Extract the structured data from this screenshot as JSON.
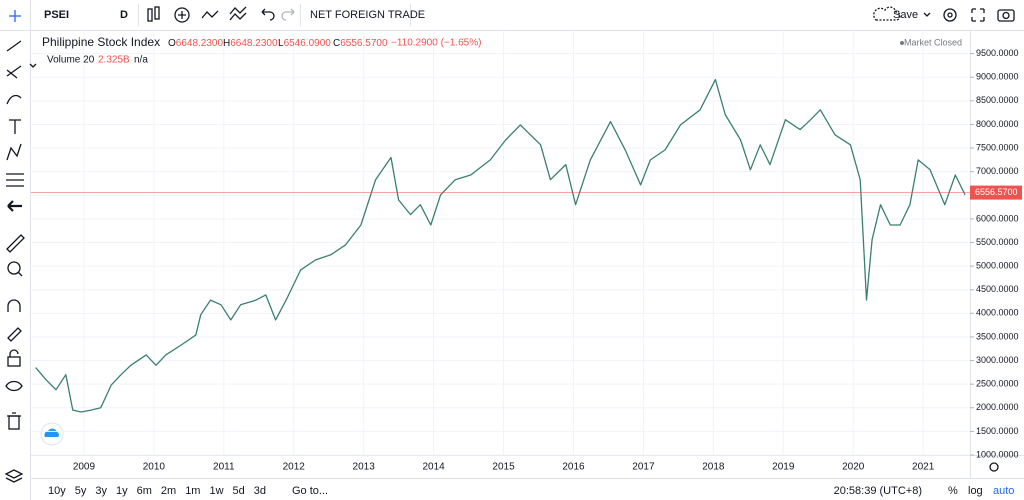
{
  "toolbar": {
    "symbol": "PSEI",
    "interval": "D",
    "indicator": "NET FOREIGN TRADE",
    "save": "Save"
  },
  "legend": {
    "ohlc": [
      {
        "key": "O",
        "value": "6648.2300"
      },
      {
        "key": "H",
        "value": "6648.2300"
      },
      {
        "key": "L",
        "value": "6546.0900"
      },
      {
        "key": "C",
        "value": "6556.5700"
      }
    ],
    "change": "−110.2900 (−1.65%)",
    "status": "Market Closed",
    "volume": {
      "name": "Volume 20",
      "value": "2.325B",
      "extra": "n/a"
    }
  },
  "chart_data": {
    "type": "line",
    "series": [
      {
        "name": "Philippine Stock Index",
        "color": "#3b7f73",
        "values": [
          2850,
          2590,
          2380,
          2700,
          1950,
          1910,
          1950,
          2000,
          2480,
          2700,
          2900,
          3120,
          2900,
          3120,
          3330,
          3540,
          3970,
          4280,
          4180,
          3860,
          4180,
          4280,
          4390,
          3860,
          4280,
          4920,
          5130,
          5240,
          5450,
          5870,
          6830,
          7300,
          6400,
          6090,
          6300,
          5870,
          6510,
          6830,
          6930,
          7250,
          7670,
          7990,
          7570,
          6830,
          7150,
          6300,
          7250,
          8060,
          7460,
          6720,
          7250,
          7460,
          7990,
          8310,
          8950,
          8210,
          7670,
          7040,
          7570,
          7150,
          8100,
          7890,
          8100,
          8310,
          7780,
          7570,
          6830,
          4280,
          5560,
          6300,
          5870,
          5870,
          6300,
          7250,
          7040,
          6300,
          6930,
          6510
        ]
      }
    ],
    "x": [
      2008.31,
      2008.46,
      2008.6,
      2008.74,
      2008.84,
      2008.96,
      2009.1,
      2009.24,
      2009.39,
      2009.53,
      2009.67,
      2009.89,
      2010.03,
      2010.17,
      2010.39,
      2010.6,
      2010.67,
      2010.81,
      2010.96,
      2011.1,
      2011.24,
      2011.46,
      2011.6,
      2011.74,
      2011.89,
      2012.1,
      2012.31,
      2012.53,
      2012.74,
      2012.96,
      2013.17,
      2013.39,
      2013.5,
      2013.67,
      2013.81,
      2013.96,
      2014.1,
      2014.31,
      2014.53,
      2014.81,
      2015.03,
      2015.24,
      2015.53,
      2015.67,
      2015.89,
      2016.03,
      2016.24,
      2016.53,
      2016.74,
      2016.96,
      2017.1,
      2017.31,
      2017.53,
      2017.81,
      2018.03,
      2018.17,
      2018.39,
      2018.53,
      2018.67,
      2018.81,
      2019.03,
      2019.24,
      2019.39,
      2019.53,
      2019.74,
      2019.96,
      2020.1,
      2020.19,
      2020.27,
      2020.39,
      2020.53,
      2020.67,
      2020.81,
      2020.93,
      2021.1,
      2021.31,
      2021.46,
      2021.6
    ],
    "xlim": [
      2008.3,
      2021.67
    ],
    "xticks": [
      2009,
      2010,
      2011,
      2012,
      2013,
      2014,
      2015,
      2016,
      2017,
      2018,
      2019,
      2020,
      2021
    ],
    "ylim": [
      1000,
      10000
    ],
    "yticks": [
      {
        "value": 1000,
        "label": "1000.0000"
      },
      {
        "value": 1500,
        "label": "1500.0000"
      },
      {
        "value": 2000,
        "label": "2000.0000"
      },
      {
        "value": 2500,
        "label": "2500.0000"
      },
      {
        "value": 3000,
        "label": "3000.0000"
      },
      {
        "value": 3500,
        "label": "3500.0000"
      },
      {
        "value": 4000,
        "label": "4000.0000"
      },
      {
        "value": 4500,
        "label": "4500.0000"
      },
      {
        "value": 5000,
        "label": "5000.0000"
      },
      {
        "value": 5500,
        "label": "5500.0000"
      },
      {
        "value": 6000,
        "label": "6000.0000"
      },
      {
        "value": 6500,
        "label": "6500.0000"
      },
      {
        "value": 7000,
        "label": "7000.0000"
      },
      {
        "value": 7500,
        "label": "7500.0000"
      },
      {
        "value": 8000,
        "label": "8000.0000"
      },
      {
        "value": 8500,
        "label": "8500.0000"
      },
      {
        "value": 9000,
        "label": "9000.0000"
      },
      {
        "value": 9500,
        "label": "9500.0000"
      }
    ],
    "last_price": {
      "value": 6556.57,
      "label": "6556.5700",
      "color": "#ef5350"
    },
    "grid": true
  },
  "bottom_bar": {
    "ranges": [
      "10y",
      "5y",
      "3y",
      "1y",
      "6m",
      "2m",
      "1m",
      "1w",
      "5d",
      "3d"
    ],
    "goto": "Go to...",
    "clock": "20:58:39 (UTC+8)",
    "scale_options": [
      "%",
      "log",
      "auto"
    ]
  }
}
